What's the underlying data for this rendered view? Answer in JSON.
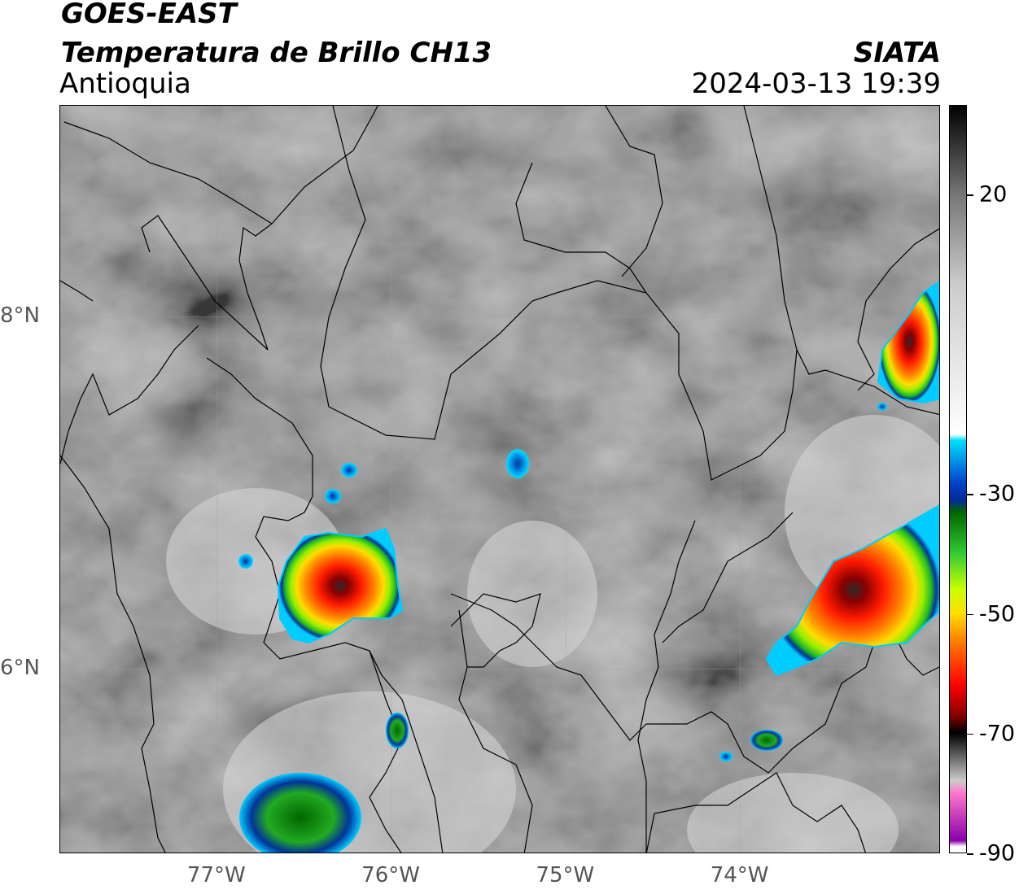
{
  "header": {
    "satellite": "GOES-EAST",
    "product": "Temperatura de Brillo CH13",
    "region": "Antioquia",
    "agency": "SIATA",
    "datetime": "2024-03-13 19:39"
  },
  "map": {
    "lon_range": [
      -77.9,
      -72.85
    ],
    "lat_range": [
      4.95,
      9.2
    ],
    "lat_ticks": [
      {
        "value": 8,
        "label": "8°N"
      },
      {
        "value": 6,
        "label": "6°N"
      }
    ],
    "lon_ticks": [
      {
        "value": -77,
        "label": "77°W"
      },
      {
        "value": -76,
        "label": "76°W"
      },
      {
        "value": -75,
        "label": "75°W"
      },
      {
        "value": -74,
        "label": "74°W"
      }
    ],
    "background_color": "#7c7c7c"
  },
  "colorbar": {
    "range": [
      -90,
      35
    ],
    "ticks": [
      {
        "value": 20,
        "label": "20"
      },
      {
        "value": -30,
        "label": "-30"
      },
      {
        "value": -50,
        "label": "-50"
      },
      {
        "value": -70,
        "label": "-70"
      },
      {
        "value": -90,
        "label": "-90"
      }
    ],
    "stops": [
      {
        "value": 35,
        "color": "#000000"
      },
      {
        "value": 20,
        "color": "#777777"
      },
      {
        "value": 5,
        "color": "#cccccc"
      },
      {
        "value": -20,
        "color": "#ffffff"
      },
      {
        "value": -21,
        "color": "#00e0ff"
      },
      {
        "value": -28,
        "color": "#0044cc"
      },
      {
        "value": -31,
        "color": "#002a99"
      },
      {
        "value": -33,
        "color": "#006600"
      },
      {
        "value": -40,
        "color": "#33cc33"
      },
      {
        "value": -46,
        "color": "#ccff00"
      },
      {
        "value": -50,
        "color": "#ffdd00"
      },
      {
        "value": -55,
        "color": "#ff7700"
      },
      {
        "value": -62,
        "color": "#ff0000"
      },
      {
        "value": -67,
        "color": "#880000"
      },
      {
        "value": -70,
        "color": "#000000"
      },
      {
        "value": -78,
        "color": "#cccccc"
      },
      {
        "value": -80,
        "color": "#ff77cc"
      },
      {
        "value": -88,
        "color": "#8800aa"
      },
      {
        "value": -89,
        "color": "#ffffff"
      }
    ]
  },
  "storm_cells": [
    {
      "lon": -76.35,
      "lat": 6.55,
      "min_temp": -70
    },
    {
      "lon": -73.6,
      "lat": 6.4,
      "min_temp": -72
    },
    {
      "lon": -73.15,
      "lat": 7.8,
      "min_temp": -72
    },
    {
      "lon": -76.55,
      "lat": 5.1,
      "min_temp": -40
    },
    {
      "lon": -76.0,
      "lat": 5.75,
      "min_temp": -40
    },
    {
      "lon": -73.95,
      "lat": 5.6,
      "min_temp": -35
    },
    {
      "lon": -75.35,
      "lat": 7.25,
      "min_temp": -22
    }
  ]
}
